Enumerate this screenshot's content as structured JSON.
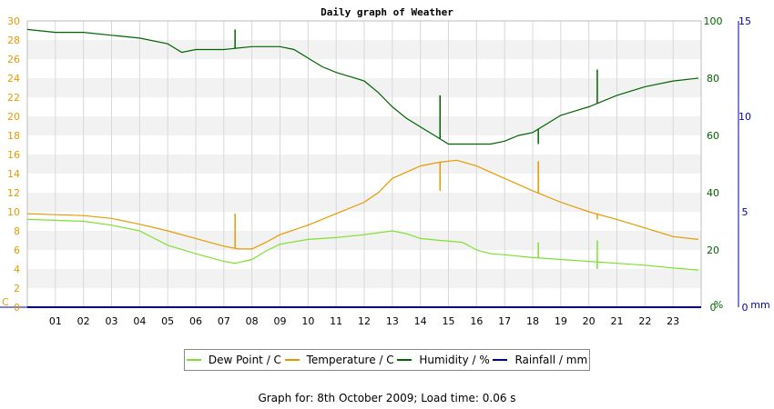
{
  "chart_data": {
    "type": "line",
    "title": "Daily graph of Weather",
    "x_ticks": [
      "01",
      "02",
      "03",
      "04",
      "05",
      "06",
      "07",
      "08",
      "09",
      "10",
      "11",
      "12",
      "13",
      "14",
      "15",
      "16",
      "17",
      "18",
      "19",
      "20",
      "21",
      "22",
      "23"
    ],
    "x_range_hours": [
      0,
      24
    ],
    "left_axis": {
      "unit_label": "C",
      "ticks": [
        0,
        2,
        4,
        6,
        8,
        10,
        12,
        14,
        16,
        18,
        20,
        22,
        24,
        26,
        28,
        30
      ],
      "range": [
        0,
        30
      ],
      "color": "#e69a00"
    },
    "right_axis_humidity": {
      "unit_label": "%",
      "ticks": [
        0,
        20,
        40,
        60,
        80,
        100
      ],
      "range": [
        0,
        100
      ],
      "color": "#006400"
    },
    "right_axis_rain": {
      "unit_label": "mm",
      "ticks": [
        0,
        5,
        10,
        15
      ],
      "range": [
        0,
        15
      ],
      "color": "#0000aa"
    },
    "grid": true,
    "series": [
      {
        "name": "Dew Point / C",
        "color": "#80e030",
        "axis": "left",
        "points": [
          [
            0,
            9.2
          ],
          [
            1,
            9.1
          ],
          [
            2,
            9.0
          ],
          [
            3,
            8.6
          ],
          [
            4,
            8.0
          ],
          [
            5,
            6.5
          ],
          [
            6,
            5.6
          ],
          [
            7,
            4.8
          ],
          [
            7.4,
            4.6
          ],
          [
            8,
            5.0
          ],
          [
            8.5,
            5.9
          ],
          [
            9,
            6.6
          ],
          [
            10,
            7.1
          ],
          [
            11,
            7.3
          ],
          [
            12,
            7.6
          ],
          [
            13,
            8.0
          ],
          [
            13.5,
            7.7
          ],
          [
            14,
            7.2
          ],
          [
            14.7,
            7.0
          ],
          [
            15.5,
            6.8
          ],
          [
            16,
            6.0
          ],
          [
            16.5,
            5.6
          ],
          [
            17,
            5.5
          ],
          [
            18,
            5.2
          ],
          [
            19,
            5.0
          ],
          [
            20,
            4.8
          ],
          [
            21,
            4.6
          ],
          [
            22,
            4.4
          ],
          [
            23,
            4.1
          ],
          [
            23.9,
            3.9
          ]
        ],
        "spikes": [
          [
            7.4,
            4.7
          ],
          [
            18.2,
            6.8
          ],
          [
            20.3,
            4.0
          ],
          [
            20.3,
            7.0
          ]
        ]
      },
      {
        "name": "Temperature / C",
        "color": "#e69a00",
        "axis": "left",
        "points": [
          [
            0,
            9.8
          ],
          [
            1,
            9.7
          ],
          [
            2,
            9.6
          ],
          [
            3,
            9.3
          ],
          [
            4,
            8.7
          ],
          [
            5,
            8.0
          ],
          [
            6,
            7.2
          ],
          [
            7,
            6.4
          ],
          [
            7.5,
            6.1
          ],
          [
            8,
            6.1
          ],
          [
            8.5,
            6.8
          ],
          [
            9,
            7.6
          ],
          [
            10,
            8.6
          ],
          [
            11,
            9.8
          ],
          [
            12,
            11.0
          ],
          [
            12.5,
            12.0
          ],
          [
            13,
            13.5
          ],
          [
            14,
            14.8
          ],
          [
            14.7,
            15.2
          ],
          [
            15.3,
            15.4
          ],
          [
            16,
            14.8
          ],
          [
            17,
            13.5
          ],
          [
            18,
            12.2
          ],
          [
            19,
            11.0
          ],
          [
            20,
            10.0
          ],
          [
            21,
            9.2
          ],
          [
            22,
            8.3
          ],
          [
            23,
            7.4
          ],
          [
            23.9,
            7.1
          ]
        ],
        "spikes": [
          [
            7.4,
            9.8
          ],
          [
            14.7,
            12.2
          ],
          [
            18.2,
            15.3
          ],
          [
            20.3,
            9.2
          ]
        ]
      },
      {
        "name": "Humidity / %",
        "color": "#006400",
        "axis": "right_humidity",
        "points": [
          [
            0,
            97
          ],
          [
            1,
            96
          ],
          [
            2,
            96
          ],
          [
            3,
            95
          ],
          [
            4,
            94
          ],
          [
            5,
            92
          ],
          [
            5.5,
            89
          ],
          [
            6,
            90
          ],
          [
            7,
            90
          ],
          [
            8,
            91
          ],
          [
            9,
            91
          ],
          [
            9.5,
            90
          ],
          [
            10,
            87
          ],
          [
            10.5,
            84
          ],
          [
            11,
            82
          ],
          [
            12,
            79
          ],
          [
            12.5,
            75
          ],
          [
            13,
            70
          ],
          [
            13.5,
            66
          ],
          [
            14,
            63
          ],
          [
            14.5,
            60
          ],
          [
            15,
            57
          ],
          [
            15.5,
            57
          ],
          [
            16,
            57
          ],
          [
            16.5,
            57
          ],
          [
            17,
            58
          ],
          [
            17.5,
            60
          ],
          [
            18,
            61
          ],
          [
            18.5,
            64
          ],
          [
            19,
            67
          ],
          [
            20,
            70
          ],
          [
            21,
            74
          ],
          [
            22,
            77
          ],
          [
            23,
            79
          ],
          [
            23.9,
            80
          ]
        ],
        "spikes": [
          [
            7.4,
            97
          ],
          [
            14.7,
            74
          ],
          [
            18.2,
            57
          ],
          [
            20.3,
            83
          ]
        ]
      },
      {
        "name": "Rainfall / mm",
        "color": "#0000aa",
        "axis": "right_rain",
        "points": [
          [
            0,
            0
          ],
          [
            24,
            0
          ]
        ]
      }
    ]
  },
  "footer": {
    "text": "Graph for: 8th October 2009; Load time: 0.06 s"
  }
}
